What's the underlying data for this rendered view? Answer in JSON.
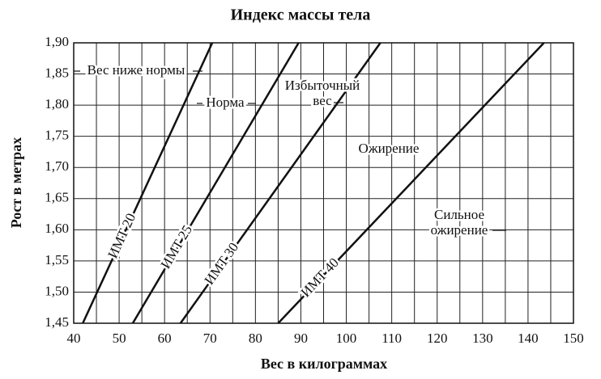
{
  "chart_data": {
    "type": "line",
    "title": "Индекс массы тела",
    "x_label": "Вес в килограммах",
    "y_label": "Рост в метрах",
    "xlim": [
      40,
      150
    ],
    "ylim": [
      1.45,
      1.9
    ],
    "xticks": [
      40,
      50,
      60,
      70,
      80,
      90,
      100,
      110,
      120,
      130,
      140,
      150
    ],
    "x_minor_ticks": [
      45,
      55,
      65,
      75,
      85,
      95,
      105,
      115,
      125,
      135,
      145
    ],
    "yticks": [
      {
        "value": 1.45,
        "label": "1,45"
      },
      {
        "value": 1.5,
        "label": "1,50"
      },
      {
        "value": 1.55,
        "label": "1,55"
      },
      {
        "value": 1.6,
        "label": "1,60"
      },
      {
        "value": 1.65,
        "label": "1,65"
      },
      {
        "value": 1.7,
        "label": "1,70"
      },
      {
        "value": 1.75,
        "label": "1,75"
      },
      {
        "value": 1.8,
        "label": "1,80"
      },
      {
        "value": 1.85,
        "label": "1,85"
      },
      {
        "value": 1.9,
        "label": "1,90"
      }
    ],
    "grid": true,
    "series": [
      {
        "name": "ИМТ 20",
        "color": "#111111",
        "x": [
          42,
          70.5
        ],
        "values": [
          1.45,
          1.9
        ]
      },
      {
        "name": "ИМТ 25",
        "color": "#111111",
        "x": [
          53,
          89.5
        ],
        "values": [
          1.45,
          1.9
        ]
      },
      {
        "name": "ИМТ 30",
        "color": "#111111",
        "x": [
          63.5,
          107.5
        ],
        "values": [
          1.45,
          1.9
        ]
      },
      {
        "name": "ИМТ 40",
        "color": "#111111",
        "x": [
          85,
          143.5
        ],
        "values": [
          1.45,
          1.9
        ]
      }
    ],
    "annotations": [
      {
        "lines": [
          "Вес ниже нормы"
        ]
      },
      {
        "lines": [
          "Норма"
        ]
      },
      {
        "lines": [
          "Избыточный",
          "вес"
        ]
      },
      {
        "lines": [
          "Ожирение"
        ]
      },
      {
        "lines": [
          "Сильное",
          "ожирение"
        ]
      }
    ]
  }
}
